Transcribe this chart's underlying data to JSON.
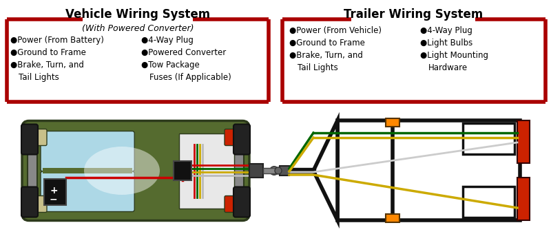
{
  "title_left": "Vehicle Wiring System",
  "title_right": "Trailer Wiring System",
  "subtitle_left": "(With Powered Converter)",
  "bg_color": "#ffffff",
  "border_color": "#aa0000",
  "title_color": "#000000",
  "bullet_color": "#000000",
  "left_bullets_col1": [
    "Power (From Battery)",
    "Ground to Frame",
    "Brake, Turn, and",
    "   Tail Lights"
  ],
  "left_bullets_col2": [
    "4-Way Plug",
    "Powered Converter",
    "Tow Package",
    "   Fuses (If Applicable)"
  ],
  "right_bullets_col1": [
    "Power (From Vehicle)",
    "Ground to Frame",
    "Brake, Turn, and",
    "   Tail Lights"
  ],
  "right_bullets_col2": [
    "4-Way Plug",
    "Light Bulbs",
    "Light Mounting",
    "   Hardware"
  ],
  "car_body_color": "#556b2f",
  "car_dark": "#2d3a1c",
  "car_gray": "#888888",
  "ws_color": "#add8e6",
  "tire_color": "#222222",
  "light_cream": "#c8c08a",
  "light_red": "#cc2200",
  "wire_red": "#cc0000",
  "wire_green": "#006600",
  "wire_yellow": "#ccaa00",
  "wire_white": "#bbbbbb",
  "wire_brown": "#8b4513",
  "trailer_frame": "#111111",
  "trailer_bg": "#ffffff",
  "orange_light": "#ff8800",
  "plug_color": "#555555"
}
